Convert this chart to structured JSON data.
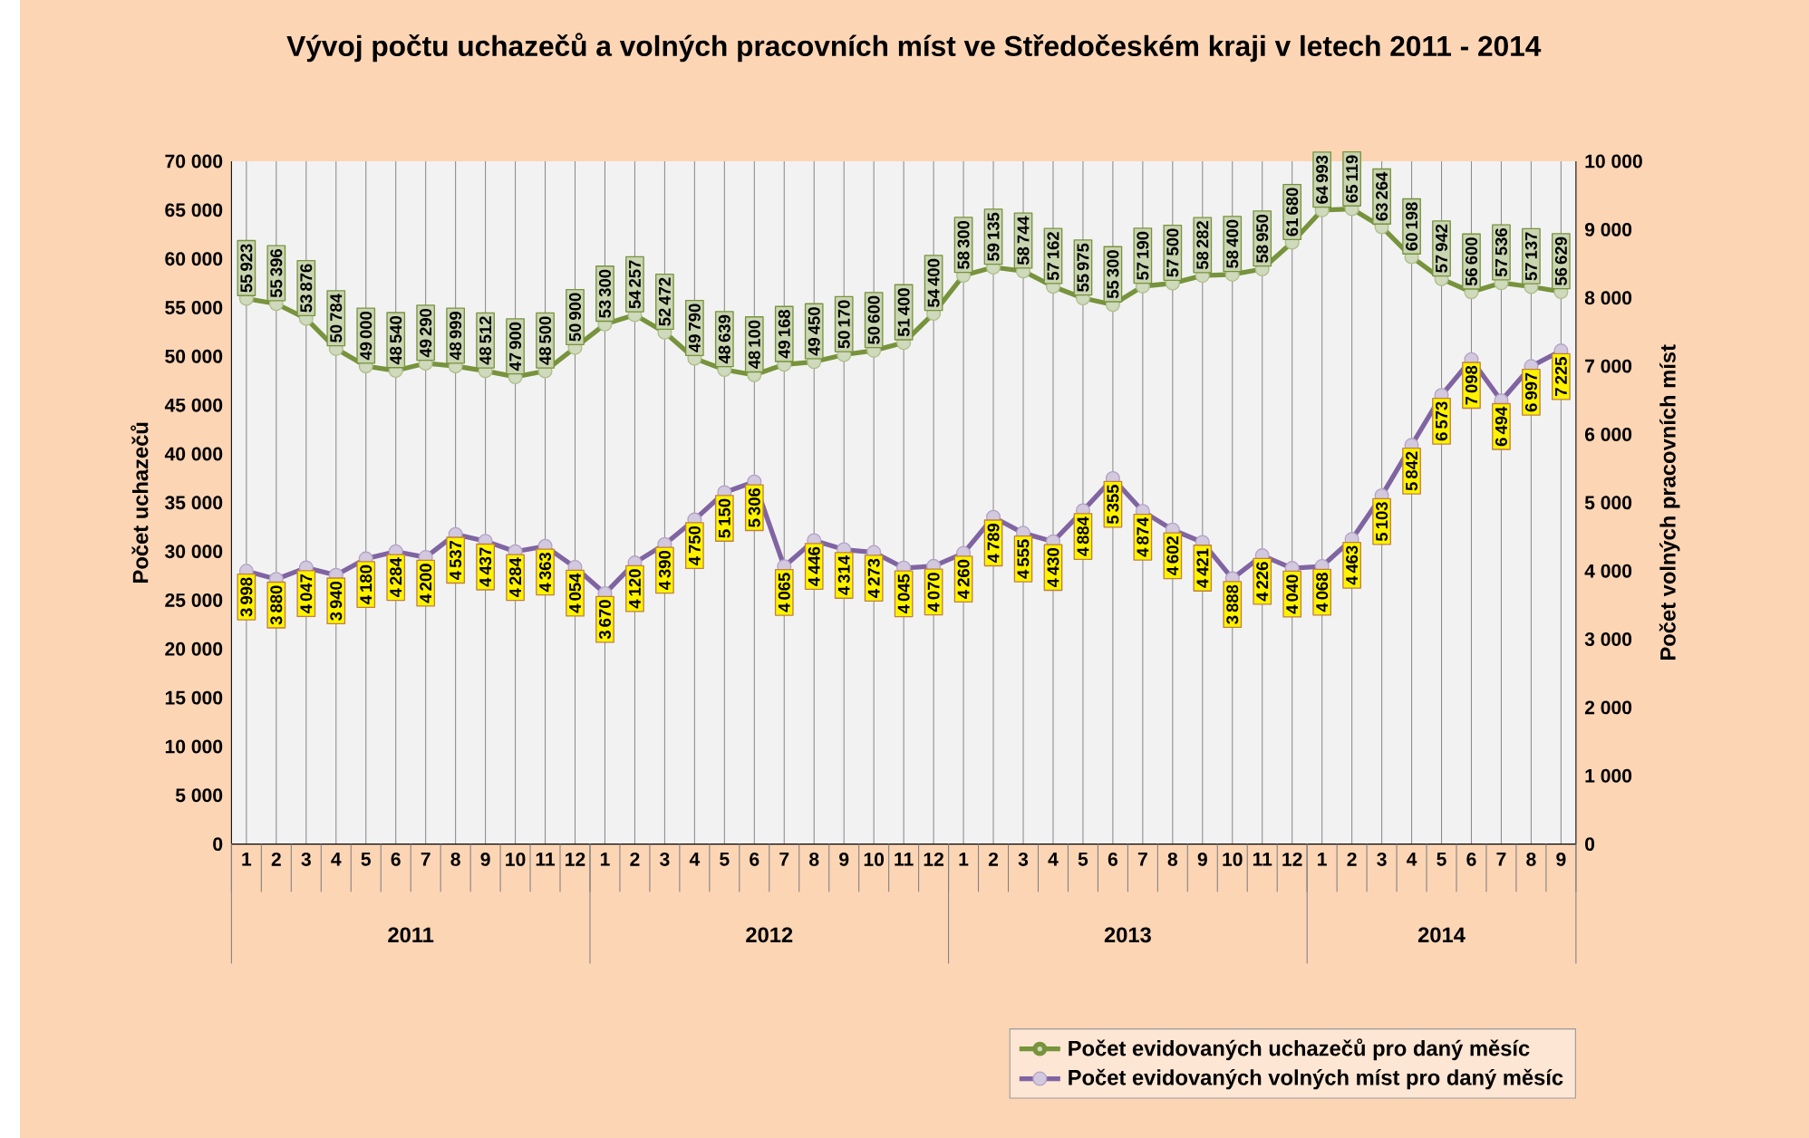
{
  "chart_data": {
    "type": "line",
    "title": "Vývoj počtu uchazečů a volných pracovních míst ve Středočeském kraji v letech 2011 - 2014",
    "ylabel": "Počet uchazečů",
    "y2label": "Počet volných pracovních míst",
    "categories": [
      "1",
      "2",
      "3",
      "4",
      "5",
      "6",
      "7",
      "8",
      "9",
      "10",
      "11",
      "12",
      "1",
      "2",
      "3",
      "4",
      "5",
      "6",
      "7",
      "8",
      "9",
      "10",
      "11",
      "12",
      "1",
      "2",
      "3",
      "4",
      "5",
      "6",
      "7",
      "8",
      "9",
      "10",
      "11",
      "12",
      "1",
      "2",
      "3",
      "4",
      "5",
      "6",
      "7",
      "8",
      "9"
    ],
    "annotations": [
      "2011",
      "2012",
      "2013",
      "2014"
    ],
    "series": [
      {
        "name": "Počet evidovaných uchazečů pro daný měsíc",
        "color": "#77933c",
        "values": [
          55923,
          55396,
          53876,
          50784,
          49000,
          48540,
          49290,
          48999,
          48512,
          47900,
          48500,
          50900,
          53300,
          54257,
          52472,
          49790,
          48639,
          48100,
          49168,
          49450,
          50170,
          50600,
          51400,
          54400,
          58300,
          59135,
          58744,
          57162,
          55975,
          55300,
          57190,
          57500,
          58282,
          58400,
          58950,
          61680,
          64993,
          65119,
          63264,
          60198,
          57942,
          56600,
          57536,
          57137,
          56629
        ]
      },
      {
        "name": "Počet evidovaných volných míst pro daný měsíc",
        "color": "#8064a2",
        "axis": "y2",
        "values": [
          3998,
          3880,
          4047,
          3940,
          4180,
          4284,
          4200,
          4537,
          4437,
          4284,
          4363,
          4054,
          3670,
          4120,
          4390,
          4750,
          5150,
          5306,
          4065,
          4446,
          4314,
          4273,
          4045,
          4070,
          4260,
          4789,
          4555,
          4430,
          4884,
          5355,
          4874,
          4602,
          4421,
          3888,
          4226,
          4040,
          4068,
          4463,
          5103,
          5842,
          6573,
          7098,
          6494,
          6997,
          7225
        ]
      }
    ],
    "ylim": [
      0,
      70000
    ],
    "yticks": [
      0,
      {
        "value": 5000,
        "label": "5 000"
      },
      {
        "value": 10000,
        "label": "10 000"
      },
      {
        "value": 15000,
        "label": "15 000"
      },
      {
        "value": 20000,
        "label": "20 000"
      },
      {
        "value": 25000,
        "label": "25 000"
      },
      {
        "value": 30000,
        "label": "30 000"
      },
      {
        "value": 35000,
        "label": "35 000"
      },
      {
        "value": 40000,
        "label": "40 000"
      },
      {
        "value": 45000,
        "label": "45 000"
      },
      {
        "value": 50000,
        "label": "50 000"
      },
      {
        "value": 55000,
        "label": "55 000"
      },
      {
        "value": 60000,
        "label": "60 000"
      },
      {
        "value": 65000,
        "label": "65 000"
      },
      {
        "value": 70000,
        "label": "70 000"
      }
    ],
    "y2lim": [
      0,
      10000
    ],
    "y2ticks": [
      0,
      {
        "value": 1000,
        "label": "1 000"
      },
      {
        "value": 2000,
        "label": "2 000"
      },
      {
        "value": 3000,
        "label": "3 000"
      },
      {
        "value": 4000,
        "label": "4 000"
      },
      {
        "value": 5000,
        "label": "5 000"
      },
      {
        "value": 6000,
        "label": "6 000"
      },
      {
        "value": 7000,
        "label": "7 000"
      },
      {
        "value": 8000,
        "label": "8 000"
      },
      {
        "value": 9000,
        "label": "9 000"
      },
      {
        "value": 10000,
        "label": "10 000"
      }
    ],
    "grid": "x",
    "legend": "bottom right",
    "marker": "circle",
    "data_labels": true
  }
}
